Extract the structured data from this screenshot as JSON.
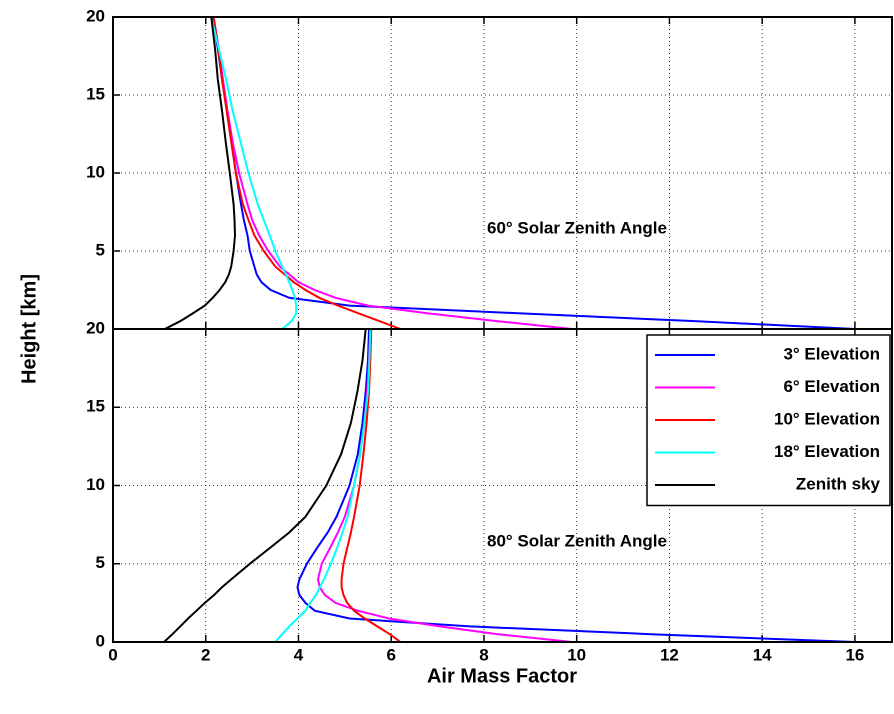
{
  "chart_data": [
    {
      "type": "line",
      "annotation": "60° Solar Zenith Angle",
      "ylabel": "Height [km]",
      "y": [
        0,
        0.5,
        1,
        1.5,
        2,
        2.5,
        3,
        3.5,
        4,
        5,
        6,
        7,
        8,
        10,
        12,
        14,
        16,
        18,
        20
      ],
      "xlim": [
        0,
        16.8
      ],
      "ylim": [
        0,
        20
      ],
      "yticks": [
        5,
        10,
        15,
        20
      ],
      "grid": true,
      "series": [
        {
          "name": "3° Elevation",
          "color": "#0000ff",
          "values": [
            16,
            12.6,
            8.8,
            5.1,
            3.8,
            3.4,
            3.2,
            3.1,
            3.05,
            2.95,
            2.9,
            2.82,
            2.76,
            2.65,
            2.56,
            2.46,
            2.35,
            2.26,
            2.15
          ]
        },
        {
          "name": "6° Elevation",
          "color": "#ff00ff",
          "values": [
            9.9,
            8.3,
            6.8,
            5.5,
            4.8,
            4.35,
            4.0,
            3.8,
            3.6,
            3.35,
            3.15,
            3.0,
            2.9,
            2.72,
            2.58,
            2.47,
            2.37,
            2.28,
            2.17
          ]
        },
        {
          "name": "10° Elevation",
          "color": "#ff0000",
          "values": [
            6.2,
            5.75,
            5.3,
            4.85,
            4.45,
            4.15,
            3.9,
            3.7,
            3.5,
            3.25,
            3.05,
            2.92,
            2.8,
            2.65,
            2.55,
            2.45,
            2.35,
            2.27,
            2.17
          ]
        },
        {
          "name": "18° Elevation",
          "color": "#00ffff",
          "values": [
            3.65,
            3.85,
            3.95,
            3.95,
            3.92,
            3.87,
            3.8,
            3.73,
            3.65,
            3.5,
            3.38,
            3.25,
            3.12,
            2.92,
            2.75,
            2.58,
            2.44,
            2.28,
            2.12
          ]
        },
        {
          "name": "Zenith sky",
          "color": "#000000",
          "values": [
            1.12,
            1.45,
            1.72,
            1.98,
            2.15,
            2.3,
            2.42,
            2.5,
            2.55,
            2.6,
            2.63,
            2.62,
            2.6,
            2.52,
            2.43,
            2.35,
            2.26,
            2.2,
            2.12
          ]
        }
      ]
    },
    {
      "type": "line",
      "annotation": "80° Solar Zenith Angle",
      "xlabel": "Air Mass Factor",
      "y": [
        0,
        0.5,
        1,
        1.5,
        2,
        2.5,
        3,
        3.5,
        4,
        5,
        6,
        7,
        8,
        10,
        12,
        14,
        16,
        18,
        20
      ],
      "xlim": [
        0,
        16.8
      ],
      "ylim": [
        0,
        20
      ],
      "xticks": [
        0,
        2,
        4,
        6,
        8,
        10,
        12,
        14,
        16
      ],
      "yticks": [
        0,
        5,
        10,
        15,
        20
      ],
      "grid": true,
      "legend": "upper right",
      "series": [
        {
          "name": "3° Elevation",
          "color": "#0000ff",
          "values": [
            16,
            11.6,
            7.7,
            5.1,
            4.35,
            4.15,
            4.02,
            3.98,
            4.02,
            4.18,
            4.4,
            4.63,
            4.82,
            5.1,
            5.28,
            5.38,
            5.45,
            5.5,
            5.52
          ]
        },
        {
          "name": "6° Elevation",
          "color": "#ff00ff",
          "values": [
            9.9,
            8.3,
            7.05,
            5.95,
            5.28,
            4.8,
            4.57,
            4.46,
            4.42,
            4.5,
            4.68,
            4.85,
            5.0,
            5.2,
            5.33,
            5.42,
            5.48,
            5.52,
            5.55
          ]
        },
        {
          "name": "10° Elevation",
          "color": "#ff0000",
          "values": [
            6.2,
            5.97,
            5.7,
            5.43,
            5.2,
            5.05,
            4.97,
            4.93,
            4.93,
            4.97,
            5.05,
            5.13,
            5.2,
            5.32,
            5.4,
            5.47,
            5.52,
            5.55,
            5.57
          ]
        },
        {
          "name": "18° Elevation",
          "color": "#00ffff",
          "values": [
            3.5,
            3.65,
            3.8,
            3.98,
            4.15,
            4.25,
            4.38,
            4.46,
            4.55,
            4.7,
            4.83,
            4.95,
            5.06,
            5.2,
            5.33,
            5.42,
            5.5,
            5.53,
            5.55
          ]
        },
        {
          "name": "Zenith sky",
          "color": "#000000",
          "values": [
            1.1,
            1.28,
            1.45,
            1.62,
            1.8,
            1.98,
            2.18,
            2.35,
            2.55,
            2.95,
            3.38,
            3.8,
            4.15,
            4.6,
            4.92,
            5.13,
            5.27,
            5.38,
            5.45
          ]
        }
      ]
    }
  ]
}
